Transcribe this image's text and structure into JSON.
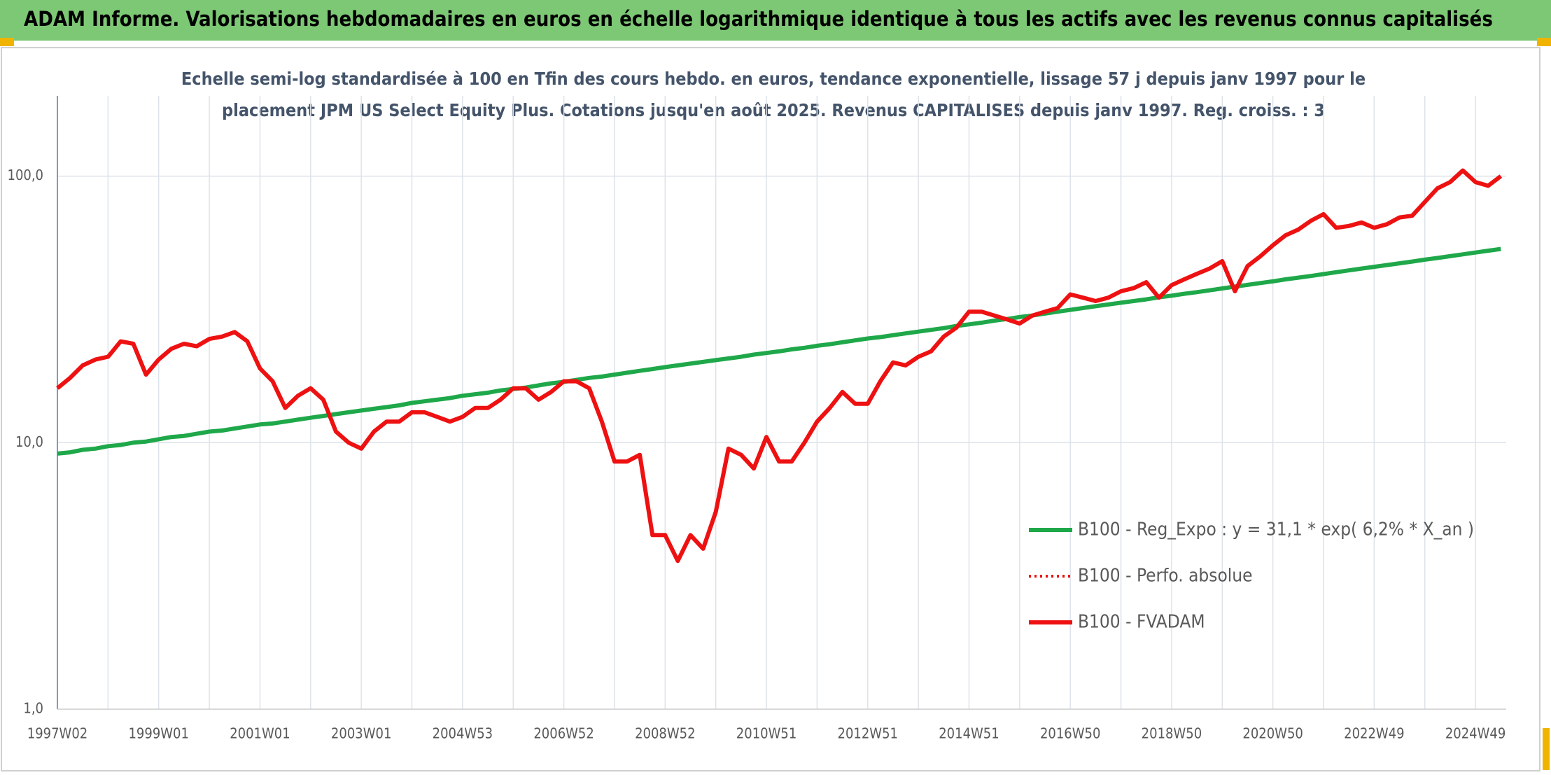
{
  "header": {
    "title": "ADAM Informe. Valorisations hebdomadaires en euros en échelle logarithmique identique à tous les actifs avec les revenus connus capitalisés"
  },
  "chart_data": {
    "type": "line",
    "title_lines": [
      "Echelle semi-log standardisée à 100 en Tfin des cours hebdo. en euros, tendance exponentielle, lissage 57 j depuis janv 1997 pour le",
      "placement JPM US Select Equity Plus. Cotations jusqu'en août 2025. Revenus CAPITALISES depuis janv 1997. Reg. croiss. : 3"
    ],
    "log_scale": true,
    "grid": true,
    "legend_position": "lower right",
    "ylim": [
      1,
      200
    ],
    "yticks": [
      {
        "value": 1,
        "label": "1,0"
      },
      {
        "value": 10,
        "label": "10,0"
      },
      {
        "value": 100,
        "label": "100,0"
      }
    ],
    "categories": [
      "1997W02",
      null,
      null,
      null,
      null,
      null,
      null,
      null,
      "1999W01",
      null,
      null,
      null,
      null,
      null,
      null,
      null,
      "2001W01",
      null,
      null,
      null,
      null,
      null,
      null,
      null,
      "2003W01",
      null,
      null,
      null,
      null,
      null,
      null,
      null,
      "2004W53",
      null,
      null,
      null,
      null,
      null,
      null,
      null,
      "2006W52",
      null,
      null,
      null,
      null,
      null,
      null,
      null,
      "2008W52",
      null,
      null,
      null,
      null,
      null,
      null,
      null,
      "2010W51",
      null,
      null,
      null,
      null,
      null,
      null,
      null,
      "2012W51",
      null,
      null,
      null,
      null,
      null,
      null,
      null,
      "2014W51",
      null,
      null,
      null,
      null,
      null,
      null,
      null,
      "2016W50",
      null,
      null,
      null,
      null,
      null,
      null,
      null,
      "2018W50",
      null,
      null,
      null,
      null,
      null,
      null,
      null,
      "2020W50",
      null,
      null,
      null,
      null,
      null,
      null,
      null,
      "2022W49",
      null,
      null,
      null,
      null,
      null,
      null,
      null,
      "2024W49",
      null,
      null
    ],
    "series": [
      {
        "name": "B100 - Reg_Expo : y = 31,1 * exp( 6,2% *  X_an )",
        "color": "#1fa84a",
        "style": "solid",
        "values": [
          9.1,
          9.2,
          9.4,
          9.5,
          9.7,
          9.8,
          10.0,
          10.1,
          10.3,
          10.5,
          10.6,
          10.8,
          11.0,
          11.1,
          11.3,
          11.5,
          11.7,
          11.8,
          12.0,
          12.2,
          12.4,
          12.6,
          12.8,
          13.0,
          13.2,
          13.4,
          13.6,
          13.8,
          14.1,
          14.3,
          14.5,
          14.7,
          15.0,
          15.2,
          15.4,
          15.7,
          15.9,
          16.1,
          16.4,
          16.7,
          16.9,
          17.2,
          17.5,
          17.7,
          18.0,
          18.3,
          18.6,
          18.9,
          19.2,
          19.5,
          19.8,
          20.1,
          20.4,
          20.7,
          21.0,
          21.4,
          21.7,
          22.0,
          22.4,
          22.7,
          23.1,
          23.4,
          23.8,
          24.2,
          24.6,
          24.9,
          25.3,
          25.7,
          26.1,
          26.5,
          26.9,
          27.4,
          27.8,
          28.2,
          28.7,
          29.1,
          29.6,
          30.0,
          30.5,
          31.0,
          31.5,
          32.0,
          32.5,
          33.0,
          33.5,
          34.0,
          34.5,
          35.1,
          35.6,
          36.2,
          36.7,
          37.3,
          37.9,
          38.5,
          39.1,
          39.7,
          40.3,
          41.0,
          41.6,
          42.2,
          42.9,
          43.6,
          44.3,
          45.0,
          45.7,
          46.4,
          47.1,
          47.8,
          48.6,
          49.3,
          50.1,
          50.9,
          51.7,
          52.5,
          53.3
        ]
      },
      {
        "name": "B100 - Perfo. absolue",
        "color": "#ee1111",
        "style": "dotted",
        "values": [
          16,
          17.5,
          19.5,
          20.5,
          21,
          24,
          23.5,
          18,
          20.5,
          22.5,
          23.5,
          23,
          24.5,
          25,
          26,
          24,
          19,
          17,
          13.5,
          15,
          16,
          14.5,
          11,
          10,
          9.5,
          11,
          12,
          12,
          13,
          13,
          12.5,
          12,
          12.5,
          13.5,
          13.5,
          14.5,
          16,
          16,
          14.5,
          15.5,
          17,
          17,
          16,
          12,
          8.5,
          8.5,
          9,
          4.5,
          4.5,
          3.6,
          4.5,
          4.0,
          5.5,
          9.5,
          9,
          8,
          10.5,
          8.5,
          8.5,
          10,
          12,
          13.5,
          15.5,
          14,
          14,
          17,
          20,
          19.5,
          21,
          22,
          25,
          27,
          31,
          31,
          30,
          29,
          28,
          30,
          31,
          32,
          36,
          35,
          34,
          35,
          37,
          38,
          40,
          35,
          39,
          41,
          43,
          45,
          48,
          37,
          46,
          50,
          55,
          60,
          63,
          68,
          72,
          64,
          65,
          67,
          64,
          66,
          70,
          71,
          80,
          90,
          95,
          105,
          95,
          92,
          100
        ]
      },
      {
        "name": "B100 - FVADAM",
        "color": "#ee1111",
        "style": "solid",
        "values": [
          16,
          17.5,
          19.5,
          20.5,
          21,
          24,
          23.5,
          18,
          20.5,
          22.5,
          23.5,
          23,
          24.5,
          25,
          26,
          24,
          19,
          17,
          13.5,
          15,
          16,
          14.5,
          11,
          10,
          9.5,
          11,
          12,
          12,
          13,
          13,
          12.5,
          12,
          12.5,
          13.5,
          13.5,
          14.5,
          16,
          16,
          14.5,
          15.5,
          17,
          17,
          16,
          12,
          8.5,
          8.5,
          9,
          4.5,
          4.5,
          3.6,
          4.5,
          4.0,
          5.5,
          9.5,
          9,
          8,
          10.5,
          8.5,
          8.5,
          10,
          12,
          13.5,
          15.5,
          14,
          14,
          17,
          20,
          19.5,
          21,
          22,
          25,
          27,
          31,
          31,
          30,
          29,
          28,
          30,
          31,
          32,
          36,
          35,
          34,
          35,
          37,
          38,
          40,
          35,
          39,
          41,
          43,
          45,
          48,
          37,
          46,
          50,
          55,
          60,
          63,
          68,
          72,
          64,
          65,
          67,
          64,
          66,
          70,
          71,
          80,
          90,
          95,
          105,
          95,
          92,
          100
        ]
      }
    ]
  }
}
